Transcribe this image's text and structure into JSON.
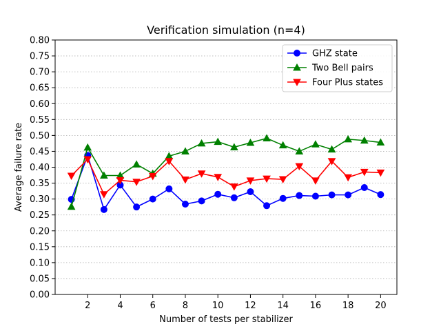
{
  "chart_data": {
    "type": "line",
    "title": "Verification simulation (n=4)",
    "xlabel": "Number of tests per stabilizer",
    "ylabel": "Average failure rate",
    "xlim": [
      0,
      21
    ],
    "ylim": [
      0,
      0.8
    ],
    "xticks": [
      2,
      4,
      6,
      8,
      10,
      12,
      14,
      16,
      18,
      20
    ],
    "xtick_labels": [
      "2",
      "4",
      "6",
      "8",
      "10",
      "12",
      "14",
      "16",
      "18",
      "20"
    ],
    "yticks": [
      0,
      0.05,
      0.1,
      0.15,
      0.2,
      0.25,
      0.3,
      0.35,
      0.4,
      0.45,
      0.5,
      0.55,
      0.6,
      0.65,
      0.7,
      0.75,
      0.8
    ],
    "ytick_labels": [
      "0.00",
      "0.05",
      "0.10",
      "0.15",
      "0.20",
      "0.25",
      "0.30",
      "0.35",
      "0.40",
      "0.45",
      "0.50",
      "0.55",
      "0.60",
      "0.65",
      "0.70",
      "0.75",
      "0.80"
    ],
    "grid": "y-dotted",
    "legend_position": "top-right",
    "x": [
      1,
      2,
      3,
      4,
      5,
      6,
      7,
      8,
      9,
      10,
      11,
      12,
      13,
      14,
      15,
      16,
      17,
      18,
      19,
      20
    ],
    "series": [
      {
        "name": "GHZ state",
        "color": "#0000ff",
        "marker": "circle",
        "values": [
          0.299,
          0.437,
          0.267,
          0.344,
          0.275,
          0.3,
          0.332,
          0.284,
          0.294,
          0.315,
          0.304,
          0.323,
          0.279,
          0.302,
          0.311,
          0.309,
          0.313,
          0.313,
          0.336,
          0.314
        ]
      },
      {
        "name": "Two Bell pairs",
        "color": "#008000",
        "marker": "triangle-up",
        "values": [
          0.276,
          0.462,
          0.374,
          0.374,
          0.409,
          0.38,
          0.435,
          0.45,
          0.475,
          0.48,
          0.463,
          0.477,
          0.491,
          0.469,
          0.45,
          0.472,
          0.456,
          0.488,
          0.484,
          0.478
        ]
      },
      {
        "name": "Four Plus states",
        "color": "#ff0000",
        "marker": "triangle-down",
        "values": [
          0.373,
          0.425,
          0.315,
          0.359,
          0.354,
          0.372,
          0.419,
          0.361,
          0.38,
          0.369,
          0.339,
          0.358,
          0.364,
          0.362,
          0.403,
          0.358,
          0.419,
          0.368,
          0.385,
          0.383
        ]
      }
    ]
  }
}
